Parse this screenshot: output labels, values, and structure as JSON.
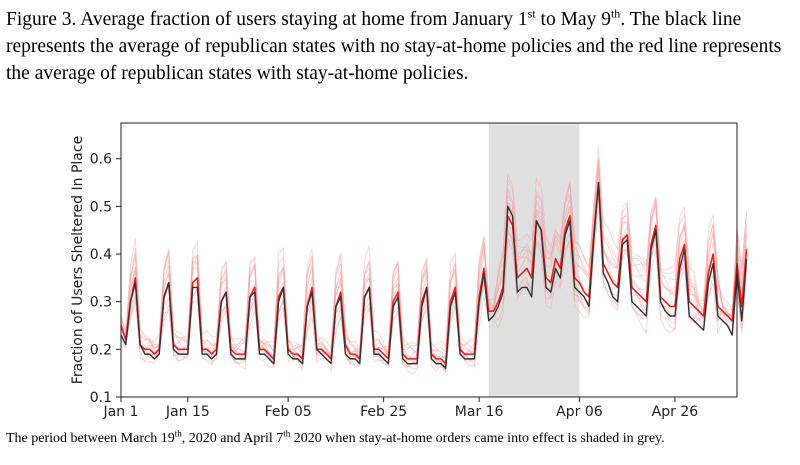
{
  "figure": {
    "caption_prefix": "Figure 3. Average fraction of users staying at home from January 1",
    "caption_sup1": "st",
    "caption_mid": " to May 9",
    "caption_sup2": "th",
    "caption_suffix": ". The black line represents the average of republican states with no stay-at-home policies and the red line represents the average of republican states with stay-at-home policies.",
    "footnote_prefix": "The period between March 19",
    "footnote_sup1": "th",
    "footnote_mid": ", 2020 and April 7",
    "footnote_sup2": "th",
    "footnote_suffix": " 2020 when stay-at-home orders came into effect is shaded in grey."
  },
  "chart_data": {
    "type": "line",
    "title": "",
    "xlabel": "",
    "ylabel": "Fraction of Users Sheltered In Place",
    "xlim": [
      0,
      129
    ],
    "ylim": [
      0.1,
      0.675
    ],
    "x_ticks": [
      {
        "day": 0,
        "label": "Jan 1"
      },
      {
        "day": 14,
        "label": "Jan 15"
      },
      {
        "day": 35,
        "label": "Feb 05"
      },
      {
        "day": 55,
        "label": "Feb 25"
      },
      {
        "day": 75,
        "label": "Mar 16"
      },
      {
        "day": 96,
        "label": "Apr 06"
      },
      {
        "day": 116,
        "label": "Apr 26"
      }
    ],
    "y_ticks": [
      0.1,
      0.2,
      0.3,
      0.4,
      0.5,
      0.6
    ],
    "shaded_region": {
      "x": [
        77,
        96
      ],
      "color": "#e0e0e0"
    },
    "colors": {
      "red_series": "#e8201e",
      "black_series": "#333333",
      "faint_lines": "#f4a0a0"
    },
    "series": [
      {
        "values": [
          0.25,
          0.22,
          0.3,
          0.35,
          0.21,
          0.2,
          0.2,
          0.19,
          0.2,
          0.31,
          0.34,
          0.21,
          0.2,
          0.2,
          0.2,
          0.34,
          0.35,
          0.2,
          0.2,
          0.19,
          0.2,
          0.3,
          0.32,
          0.2,
          0.19,
          0.19,
          0.19,
          0.31,
          0.33,
          0.2,
          0.2,
          0.19,
          0.18,
          0.31,
          0.33,
          0.2,
          0.19,
          0.19,
          0.18,
          0.29,
          0.33,
          0.2,
          0.2,
          0.19,
          0.18,
          0.29,
          0.32,
          0.21,
          0.19,
          0.19,
          0.18,
          0.31,
          0.33,
          0.2,
          0.2,
          0.19,
          0.18,
          0.3,
          0.32,
          0.19,
          0.18,
          0.18,
          0.18,
          0.3,
          0.33,
          0.19,
          0.18,
          0.18,
          0.17,
          0.3,
          0.33,
          0.2,
          0.19,
          0.19,
          0.19,
          0.31,
          0.37,
          0.28,
          0.28,
          0.3,
          0.33,
          0.48,
          0.46,
          0.35,
          0.36,
          0.37,
          0.35,
          0.47,
          0.45,
          0.35,
          0.34,
          0.39,
          0.37,
          0.45,
          0.48,
          0.35,
          0.34,
          0.32,
          0.31,
          0.44,
          0.55,
          0.38,
          0.36,
          0.34,
          0.33,
          0.43,
          0.44,
          0.33,
          0.32,
          0.31,
          0.3,
          0.42,
          0.46,
          0.31,
          0.3,
          0.29,
          0.29,
          0.39,
          0.42,
          0.3,
          0.29,
          0.28,
          0.27,
          0.36,
          0.4,
          0.29,
          0.28,
          0.27,
          0.26,
          0.38,
          0.29,
          0.41
        ]
      },
      {
        "values": [
          0.23,
          0.21,
          0.3,
          0.34,
          0.21,
          0.19,
          0.19,
          0.18,
          0.19,
          0.31,
          0.34,
          0.2,
          0.19,
          0.19,
          0.19,
          0.33,
          0.33,
          0.19,
          0.19,
          0.18,
          0.19,
          0.3,
          0.32,
          0.19,
          0.18,
          0.18,
          0.18,
          0.31,
          0.32,
          0.19,
          0.19,
          0.18,
          0.17,
          0.3,
          0.33,
          0.19,
          0.18,
          0.18,
          0.17,
          0.29,
          0.32,
          0.2,
          0.19,
          0.18,
          0.17,
          0.29,
          0.31,
          0.19,
          0.18,
          0.18,
          0.17,
          0.31,
          0.33,
          0.19,
          0.19,
          0.18,
          0.17,
          0.29,
          0.31,
          0.18,
          0.17,
          0.17,
          0.17,
          0.29,
          0.33,
          0.18,
          0.17,
          0.17,
          0.16,
          0.29,
          0.32,
          0.19,
          0.18,
          0.18,
          0.18,
          0.3,
          0.36,
          0.26,
          0.27,
          0.29,
          0.32,
          0.5,
          0.48,
          0.32,
          0.33,
          0.33,
          0.31,
          0.47,
          0.45,
          0.33,
          0.32,
          0.37,
          0.35,
          0.44,
          0.47,
          0.33,
          0.32,
          0.31,
          0.29,
          0.43,
          0.55,
          0.36,
          0.34,
          0.31,
          0.3,
          0.42,
          0.43,
          0.3,
          0.29,
          0.28,
          0.27,
          0.41,
          0.45,
          0.3,
          0.28,
          0.27,
          0.27,
          0.37,
          0.41,
          0.27,
          0.26,
          0.25,
          0.24,
          0.34,
          0.38,
          0.27,
          0.26,
          0.25,
          0.23,
          0.36,
          0.26,
          0.39
        ]
      }
    ]
  }
}
